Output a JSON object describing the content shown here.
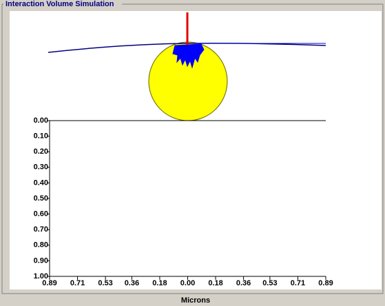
{
  "chart_data": {
    "type": "simulation",
    "title": "Interaction Volume Simulation",
    "x_label": "Microns",
    "xlim": [
      -0.89,
      0.89
    ],
    "xticks": [
      {
        "value": -0.89,
        "label": "0.89"
      },
      {
        "value": -0.71,
        "label": "0.71"
      },
      {
        "value": -0.53,
        "label": "0.53"
      },
      {
        "value": -0.36,
        "label": "0.36"
      },
      {
        "value": -0.18,
        "label": "0.18"
      },
      {
        "value": 0,
        "label": "0.00"
      },
      {
        "value": 0.18,
        "label": "0.18"
      },
      {
        "value": 0.36,
        "label": "0.36"
      },
      {
        "value": 0.53,
        "label": "0.53"
      },
      {
        "value": 0.71,
        "label": "0.71"
      },
      {
        "value": 0.89,
        "label": "0.89"
      }
    ],
    "ylim": [
      0,
      1
    ],
    "y_inverted": true,
    "yticks": [
      {
        "value": 0,
        "label": "0.00"
      },
      {
        "value": 0.1,
        "label": "0.10"
      },
      {
        "value": 0.2,
        "label": "0.20"
      },
      {
        "value": 0.3,
        "label": "0.30"
      },
      {
        "value": 0.4,
        "label": "0.40"
      },
      {
        "value": 0.5,
        "label": "0.50"
      },
      {
        "value": 0.6,
        "label": "0.60"
      },
      {
        "value": 0.7,
        "label": "0.70"
      },
      {
        "value": 0.8,
        "label": "0.80"
      },
      {
        "value": 0.9,
        "label": "0.90"
      },
      {
        "value": 1,
        "label": "1.00"
      }
    ]
  }
}
